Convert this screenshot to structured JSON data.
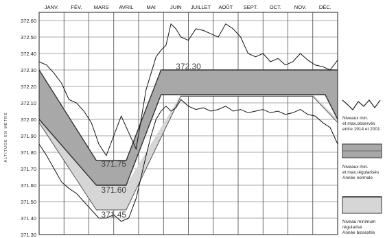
{
  "chart_data": {
    "type": "line",
    "ylabel": "ALTITUDE EN MÈTRE",
    "ylim": [
      371.3,
      372.65
    ],
    "xlim": [
      0,
      12
    ],
    "y_ticks": [
      "372.60",
      "372.50",
      "372.40",
      "372.30",
      "372.20",
      "372.10",
      "372.00",
      "371.90",
      "371.80",
      "371.70",
      "371.60",
      "371.50",
      "371.40",
      "371.30"
    ],
    "months": [
      "JANV.",
      "FÉV.",
      "MARS",
      "AVRIL",
      "MAI",
      "JUIN",
      "JUILLET",
      "AOÛT",
      "SEPT.",
      "OCT.",
      "NOV.",
      "DÉC."
    ],
    "annotations": [
      {
        "text": "372.30",
        "x": 6.0,
        "y": 372.32
      },
      {
        "text": "371.75",
        "x": 3.0,
        "y": 371.73
      },
      {
        "text": "371.60",
        "x": 3.0,
        "y": 371.57
      },
      {
        "text": "371.45",
        "x": 3.0,
        "y": 371.42
      }
    ],
    "regulated_band": {
      "name": "Niveaux min. et max. régularisés Année normale",
      "color": "#a8a8a8",
      "x": [
        0,
        2.3,
        3.5,
        4.9,
        11.5,
        12
      ],
      "upper": [
        372.3,
        371.75,
        371.75,
        372.3,
        372.3,
        372.3
      ],
      "lower": [
        372.0,
        371.6,
        371.6,
        372.15,
        372.15,
        372.0
      ]
    },
    "minimum_band": {
      "name": "Niveau minimum régularisé Année bissextile",
      "color": "#d6d6d6",
      "x": [
        0,
        2.3,
        3.5,
        5.7,
        11.0,
        12
      ],
      "upper": [
        372.0,
        371.6,
        371.6,
        372.15,
        372.15,
        372.0
      ],
      "lower": [
        371.98,
        371.45,
        371.45,
        372.14,
        372.14,
        371.98
      ]
    },
    "series": [
      {
        "name": "Niveaux max. observés",
        "x": [
          0,
          0.3,
          0.6,
          0.9,
          1.2,
          1.5,
          1.8,
          2.1,
          2.4,
          2.7,
          3.0,
          3.3,
          3.6,
          3.9,
          4.1,
          4.3,
          4.5,
          4.7,
          4.9,
          5.1,
          5.3,
          5.5,
          5.7,
          6.0,
          6.3,
          6.6,
          6.9,
          7.2,
          7.5,
          7.8,
          8.1,
          8.4,
          8.7,
          9.0,
          9.3,
          9.6,
          9.9,
          10.2,
          10.5,
          10.8,
          11.1,
          11.4,
          11.7,
          12.0
        ],
        "values": [
          372.35,
          372.33,
          372.28,
          372.22,
          372.12,
          372.1,
          372.05,
          371.98,
          371.85,
          371.78,
          371.9,
          372.02,
          371.92,
          371.82,
          372.0,
          372.18,
          372.28,
          372.38,
          372.42,
          372.45,
          372.58,
          372.55,
          372.5,
          372.48,
          372.55,
          372.54,
          372.52,
          372.5,
          372.58,
          372.55,
          372.5,
          372.4,
          372.38,
          372.4,
          372.35,
          372.37,
          372.33,
          372.35,
          372.4,
          372.36,
          372.33,
          372.32,
          372.3,
          372.36
        ]
      },
      {
        "name": "Niveaux min. observés",
        "x": [
          0,
          0.3,
          0.6,
          0.9,
          1.2,
          1.5,
          1.8,
          2.1,
          2.4,
          2.7,
          3.0,
          3.3,
          3.6,
          3.9,
          4.1,
          4.3,
          4.5,
          4.7,
          4.9,
          5.1,
          5.3,
          5.5,
          5.7,
          6.0,
          6.3,
          6.6,
          6.9,
          7.2,
          7.5,
          7.8,
          8.1,
          8.4,
          8.7,
          9.0,
          9.3,
          9.6,
          9.9,
          10.2,
          10.5,
          10.8,
          11.1,
          11.4,
          11.7,
          12.0
        ],
        "values": [
          371.85,
          371.78,
          371.7,
          371.62,
          371.58,
          371.55,
          371.5,
          371.45,
          371.4,
          371.4,
          371.42,
          371.38,
          371.4,
          371.52,
          371.65,
          371.78,
          371.9,
          372.0,
          372.05,
          372.08,
          372.05,
          372.07,
          372.12,
          372.08,
          372.06,
          372.07,
          372.05,
          372.06,
          372.08,
          372.05,
          372.06,
          372.04,
          372.05,
          372.06,
          372.04,
          372.05,
          372.03,
          372.04,
          372.06,
          372.03,
          372.02,
          371.98,
          371.95,
          371.85
        ]
      }
    ],
    "legend": {
      "position": "right",
      "items": [
        {
          "label": "Niveaux min. et max. observés entre 1914 et 2001"
        },
        {
          "label": "Niveaux min. et max. régularisés Année normale"
        },
        {
          "label": "Niveau minimum régularisé Année bissextile"
        }
      ]
    }
  }
}
